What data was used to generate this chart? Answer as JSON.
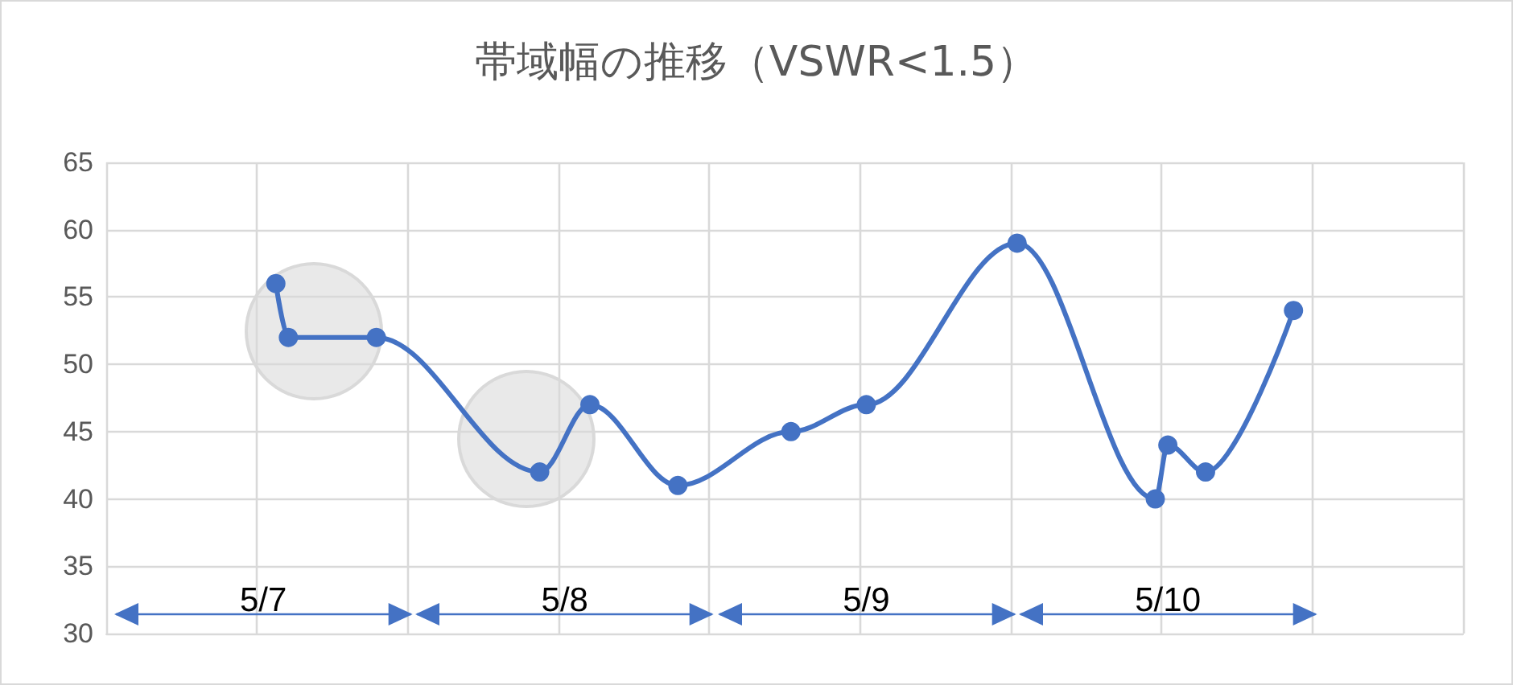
{
  "chart_data": {
    "type": "line",
    "title": "帯域幅の推移（VSWR<1.5）",
    "categories": [
      null,
      null,
      null,
      null,
      null,
      null,
      null,
      null,
      null,
      null,
      null,
      null,
      null,
      null,
      null,
      null,
      null,
      null,
      null,
      null,
      null,
      null,
      null,
      null,
      null,
      null,
      null,
      null,
      null,
      null,
      null,
      null,
      null,
      null,
      null,
      null,
      null,
      null,
      null,
      null,
      null,
      null,
      null,
      null,
      null,
      null,
      null,
      null,
      null,
      null,
      null,
      null,
      null,
      null,
      null,
      null,
      null,
      null,
      null,
      null,
      null,
      null,
      null,
      null,
      null,
      null,
      null,
      null,
      null,
      null,
      null,
      null,
      null,
      null,
      null,
      null,
      null,
      null,
      null,
      null,
      null,
      null,
      null,
      null,
      null,
      null,
      null,
      null,
      null,
      null,
      null,
      null,
      null,
      null,
      null,
      null,
      null,
      null,
      null,
      null,
      null,
      null,
      null,
      null,
      null,
      null,
      null,
      null
    ],
    "series": [
      {
        "color": "#4472c4",
        "values": [
          null,
          null,
          null,
          null,
          null,
          null,
          null,
          null,
          null,
          null,
          null,
          null,
          null,
          56,
          52,
          null,
          null,
          null,
          null,
          null,
          null,
          52,
          null,
          null,
          null,
          null,
          null,
          null,
          null,
          null,
          null,
          null,
          null,
          null,
          42,
          null,
          null,
          null,
          47,
          null,
          null,
          null,
          null,
          null,
          null,
          41,
          null,
          null,
          null,
          null,
          null,
          null,
          null,
          null,
          45,
          null,
          null,
          null,
          null,
          null,
          47,
          null,
          null,
          null,
          null,
          null,
          null,
          null,
          null,
          null,
          null,
          null,
          59,
          null,
          null,
          null,
          null,
          null,
          null,
          null,
          null,
          null,
          null,
          40,
          44,
          null,
          null,
          42,
          null,
          null,
          null,
          null,
          null,
          null,
          54,
          null,
          null,
          null,
          null,
          null,
          null,
          null,
          null,
          null,
          null,
          null,
          null,
          null
        ]
      }
    ],
    "ylim": [
      30,
      65
    ],
    "yticks": [
      30,
      35,
      40,
      45,
      50,
      55,
      60,
      65
    ],
    "grid": true,
    "marker": "circle",
    "line_style": "solid",
    "annotations": [
      "5/7",
      "5/8",
      "5/9",
      "5/10"
    ]
  }
}
